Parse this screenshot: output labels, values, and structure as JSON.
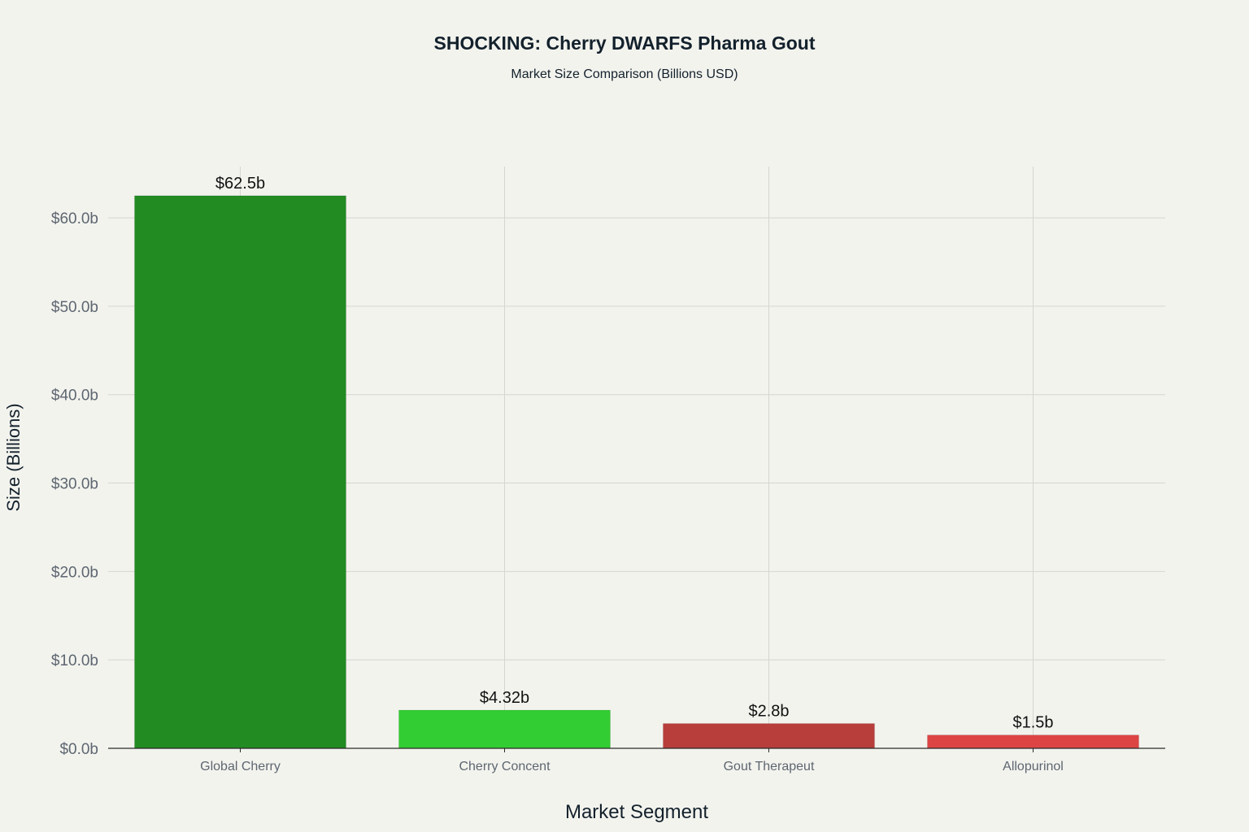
{
  "chart_data": {
    "type": "bar",
    "title": "SHOCKING: Cherry DWARFS Pharma Gout",
    "subtitle": "Market Size Comparison (Billions USD)",
    "xlabel": "Market Segment",
    "ylabel": "Size (Billions)",
    "categories": [
      "Global Cherry",
      "Cherry Concent",
      "Gout Therapeut",
      "Allopurinol"
    ],
    "values": [
      62.5,
      4.32,
      2.8,
      1.5
    ],
    "data_labels": [
      "$62.5b",
      "$4.32b",
      "$2.8b",
      "$1.5b"
    ],
    "ylim": [
      0,
      65.8
    ],
    "yticks": [
      0,
      10,
      20,
      30,
      40,
      50,
      60
    ],
    "ytick_labels": [
      "$0.0b",
      "$10.0b",
      "$20.0b",
      "$30.0b",
      "$40.0b",
      "$50.0b",
      "$60.0b"
    ],
    "colors": [
      "#228b22",
      "#32cd32",
      "#b83e3c",
      "#dd4444"
    ],
    "grid": true,
    "legend": "none"
  }
}
